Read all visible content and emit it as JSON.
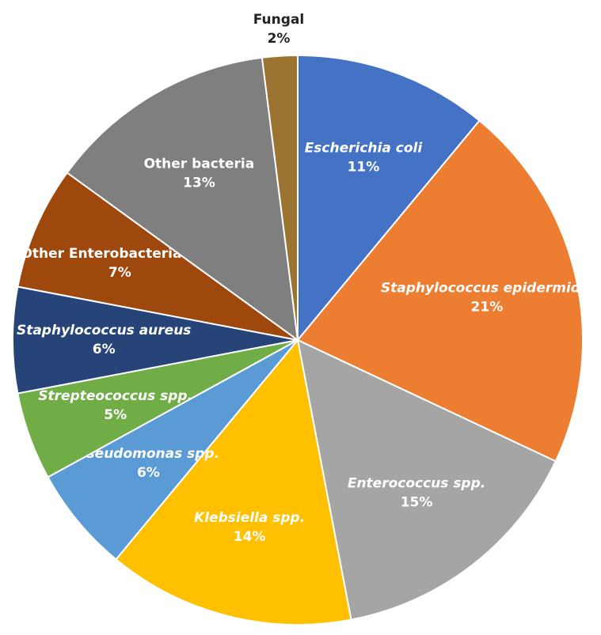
{
  "chart_data": {
    "type": "pie",
    "categories": [
      "Escherichia coli",
      "Staphylococcus epidermidis",
      "Enterococcus spp.",
      "Klebsiella spp.",
      "Pseudomonas spp.",
      "Strepteococcus spp.",
      "Staphylococcus aureus",
      "Other Enterobacteria spp.",
      "Other bacteria",
      "Fungal"
    ],
    "values": [
      11,
      21,
      15,
      14,
      6,
      5,
      6,
      7,
      13,
      2
    ],
    "value_labels": [
      "11%",
      "21%",
      "15%",
      "14%",
      "6%",
      "5%",
      "6%",
      "7%",
      "13%",
      "2%"
    ],
    "colors": [
      "#4472c4",
      "#ed7d31",
      "#a5a5a5",
      "#ffc000",
      "#5b9bd5",
      "#70ad47",
      "#264478",
      "#9e480e",
      "#7f7f7f",
      "#9c7431"
    ]
  }
}
